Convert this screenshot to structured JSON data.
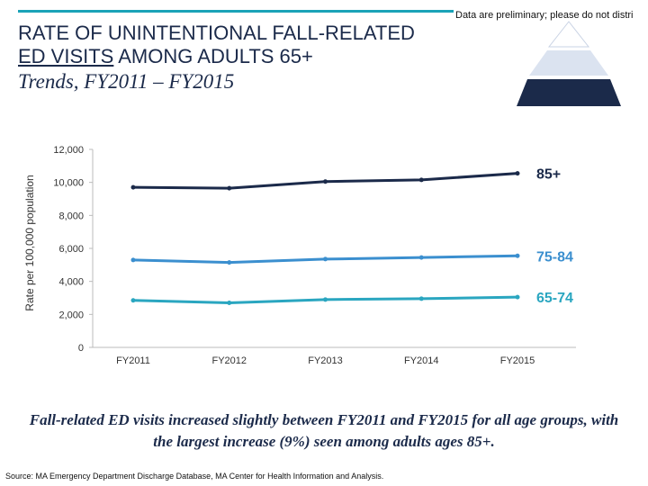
{
  "disclaimer": "Data are preliminary; please do not distri",
  "title": {
    "line1": "RATE OF UNINTENTIONAL FALL-RELATED",
    "line2_underlined": "ED VISITS",
    "line2_rest": " AMONG ADULTS 65+",
    "subtitle": "Trends, FY2011 – FY2015"
  },
  "colors": {
    "title": "#1b2a4a",
    "accent_bar": "#1aa3b8",
    "series_85plus": "#1b2a4a",
    "series_75_84": "#3b8fcf",
    "series_65_74": "#2aa6c0",
    "pyramid_top": "#ffffff",
    "pyramid_mid": "#dbe3f0",
    "pyramid_bottom": "#1b2a4a"
  },
  "chart_data": {
    "type": "line",
    "ylabel": "Rate per 100,000 population",
    "xlabel": "",
    "ylim": [
      0,
      12000
    ],
    "yticks": [
      0,
      2000,
      4000,
      6000,
      8000,
      10000,
      12000
    ],
    "ytick_labels": [
      "0",
      "2,000",
      "4,000",
      "6,000",
      "8,000",
      "10,000",
      "12,000"
    ],
    "categories": [
      "FY2011",
      "FY2012",
      "FY2013",
      "FY2014",
      "FY2015"
    ],
    "series": [
      {
        "name": "85+",
        "values": [
          9700,
          9650,
          10050,
          10150,
          10550
        ]
      },
      {
        "name": "75-84",
        "values": [
          5300,
          5150,
          5350,
          5450,
          5550
        ]
      },
      {
        "name": "65-74",
        "values": [
          2850,
          2700,
          2900,
          2950,
          3050
        ]
      }
    ],
    "grid": false,
    "legend": "labels at line ends (right)"
  },
  "takeaway": "Fall-related ED visits increased slightly between FY2011 and FY2015 for all age groups, with the largest increase (9%) seen among adults ages 85+.",
  "source": "Source: MA Emergency Department Discharge Database, MA Center for Health Information and Analysis."
}
